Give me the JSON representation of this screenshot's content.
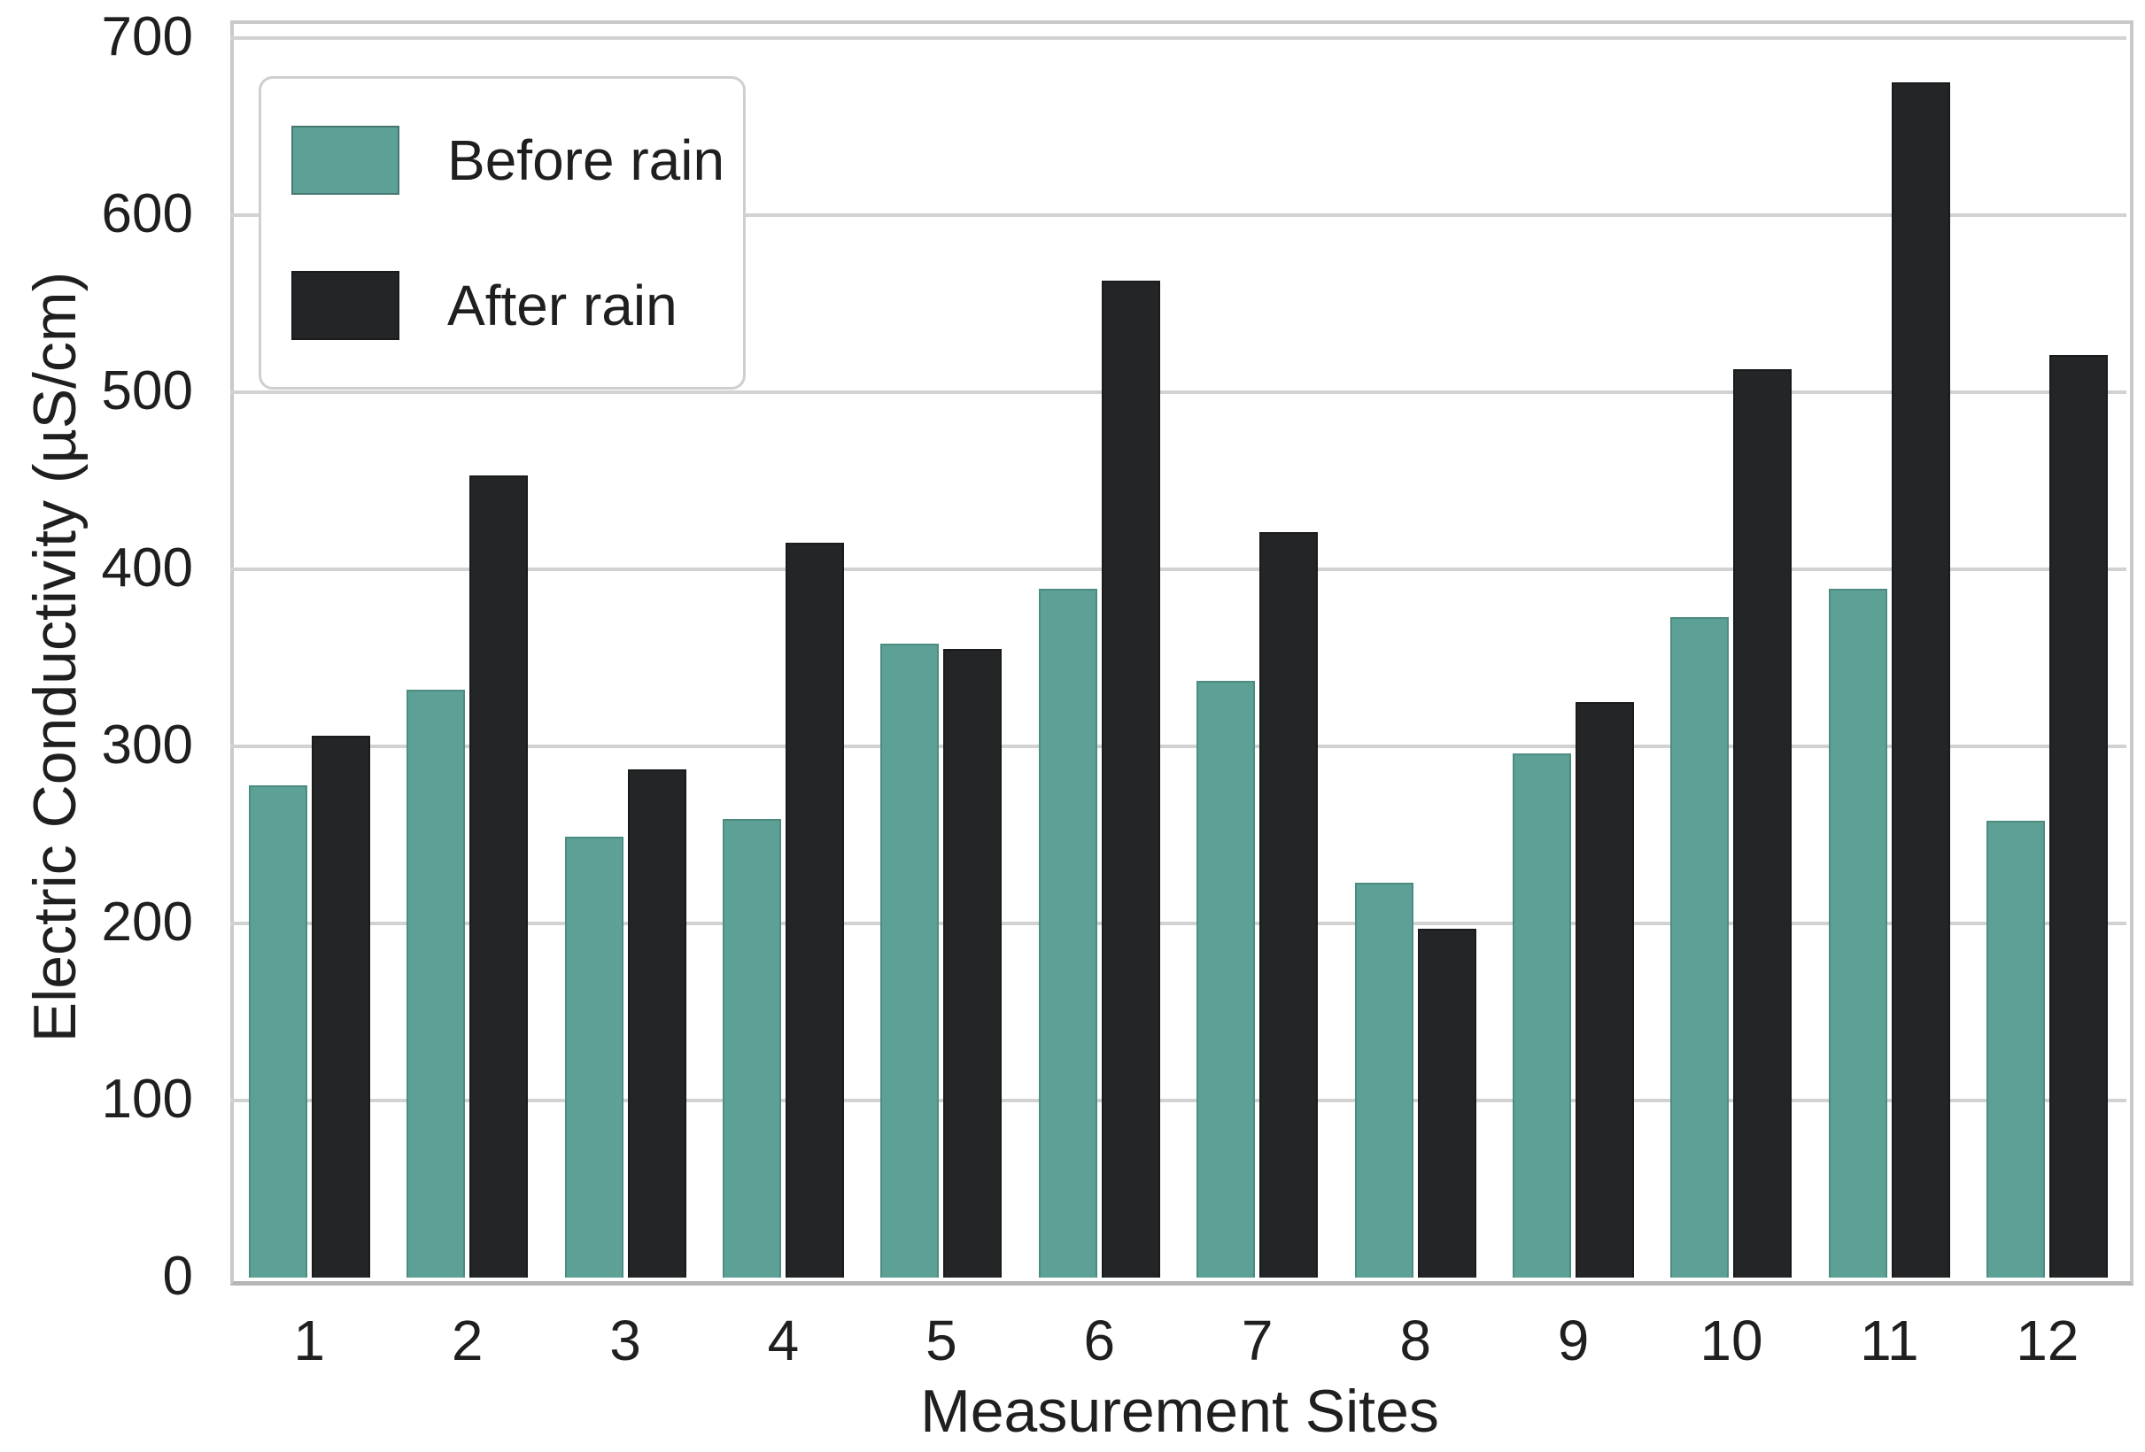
{
  "chart_data": {
    "type": "bar",
    "title": "",
    "xlabel": "Measurement Sites",
    "ylabel": "Electric Conductivity (µS/cm)",
    "categories": [
      "1",
      "2",
      "3",
      "4",
      "5",
      "6",
      "7",
      "8",
      "9",
      "10",
      "11",
      "12"
    ],
    "series": [
      {
        "name": "Before rain",
        "color": "#5da196",
        "edge_color": "#4d8c80",
        "values": [
          278,
          332,
          249,
          259,
          358,
          389,
          337,
          223,
          296,
          373,
          389,
          258
        ]
      },
      {
        "name": "After rain",
        "color": "#232526",
        "edge_color": "#1a1b1c",
        "values": [
          306,
          453,
          287,
          415,
          355,
          563,
          421,
          197,
          325,
          513,
          675,
          521
        ]
      }
    ],
    "yticks": [
      0,
      100,
      200,
      300,
      400,
      500,
      600,
      700
    ],
    "ylim": [
      0,
      710
    ],
    "grid": true,
    "grid_color": "#d2d2d2",
    "spine_color": "#c9c9c9",
    "text_color": "#1f1f1f",
    "background": "#ffffff",
    "legend_position": "upper left"
  }
}
